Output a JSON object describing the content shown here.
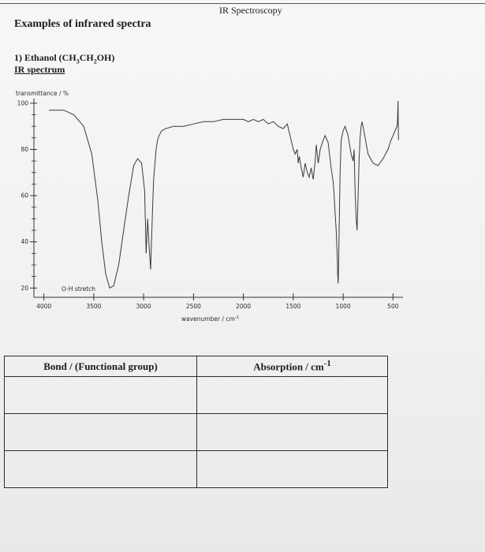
{
  "page": {
    "header": "IR Spectroscopy",
    "title": "Examples of infrared spectra",
    "example": {
      "number_label": "1)",
      "compound_prefix": "Ethanol (CH",
      "sub1": "3",
      "compound_mid": "CH",
      "sub2": "2",
      "compound_suffix": "OH)",
      "spectrum_label": "IR spectrum"
    }
  },
  "chart_data": {
    "type": "line",
    "ylabel": "transmittance / %",
    "xlabel": "wavenumber / cm",
    "xlabel_superscript": "-1",
    "x_ticks": [
      "4000",
      "3500",
      "3000",
      "2500",
      "2000",
      "1500",
      "1000",
      "500"
    ],
    "y_ticks": [
      "100",
      "80",
      "60",
      "40",
      "20"
    ],
    "xlim": [
      4100,
      400
    ],
    "ylim": [
      16,
      102
    ],
    "x_reversed": true,
    "annotation": "O-H stretch",
    "series": [
      {
        "x": [
          3950,
          3800,
          3700,
          3600,
          3520,
          3460,
          3420,
          3380,
          3340,
          3300,
          3250,
          3200,
          3150,
          3100,
          3060,
          3020,
          2990,
          2975,
          2960,
          2945,
          2930,
          2920,
          2910,
          2900,
          2890,
          2875,
          2860,
          2845,
          2820,
          2780,
          2700,
          2600,
          2500,
          2400,
          2300,
          2200,
          2100,
          2000,
          1950,
          1900,
          1850,
          1800,
          1750,
          1700,
          1650,
          1600,
          1560,
          1500,
          1480,
          1460,
          1450,
          1440,
          1420,
          1400,
          1380,
          1360,
          1340,
          1320,
          1300,
          1280,
          1270,
          1250,
          1230,
          1200,
          1180,
          1150,
          1120,
          1100,
          1090,
          1080,
          1070,
          1060,
          1055,
          1050,
          1045,
          1040,
          1030,
          1020,
          1000,
          980,
          950,
          920,
          900,
          890,
          880,
          870,
          860,
          850,
          840,
          830,
          820,
          810,
          800,
          750,
          700,
          650,
          600,
          550,
          520,
          500,
          480,
          470,
          460,
          455,
          450,
          445
        ],
        "y": [
          97,
          97,
          95,
          90,
          78,
          58,
          40,
          26,
          20,
          21,
          30,
          45,
          60,
          73,
          76,
          74,
          62,
          35,
          50,
          38,
          28,
          42,
          55,
          67,
          72,
          80,
          84,
          86,
          88,
          89,
          90,
          90,
          91,
          92,
          92,
          93,
          93,
          93,
          92,
          93,
          92,
          93,
          91,
          92,
          90,
          89,
          91,
          80,
          78,
          80,
          74,
          77,
          72,
          68,
          74,
          70,
          68,
          72,
          67,
          75,
          82,
          74,
          80,
          84,
          86,
          83,
          72,
          66,
          60,
          52,
          45,
          35,
          26,
          22,
          30,
          45,
          70,
          84,
          88,
          90,
          86,
          78,
          75,
          80,
          62,
          50,
          45,
          60,
          75,
          85,
          90,
          92,
          90,
          78,
          74,
          73,
          76,
          80,
          84,
          86,
          88,
          89,
          90,
          92,
          101,
          84
        ]
      }
    ],
    "grid": false
  },
  "table": {
    "headers": [
      "Bond / (Functional group)",
      "Absorption / cm"
    ],
    "header_superscript": "-1",
    "rows": [
      [
        "",
        ""
      ],
      [
        "",
        ""
      ],
      [
        "",
        ""
      ]
    ]
  }
}
